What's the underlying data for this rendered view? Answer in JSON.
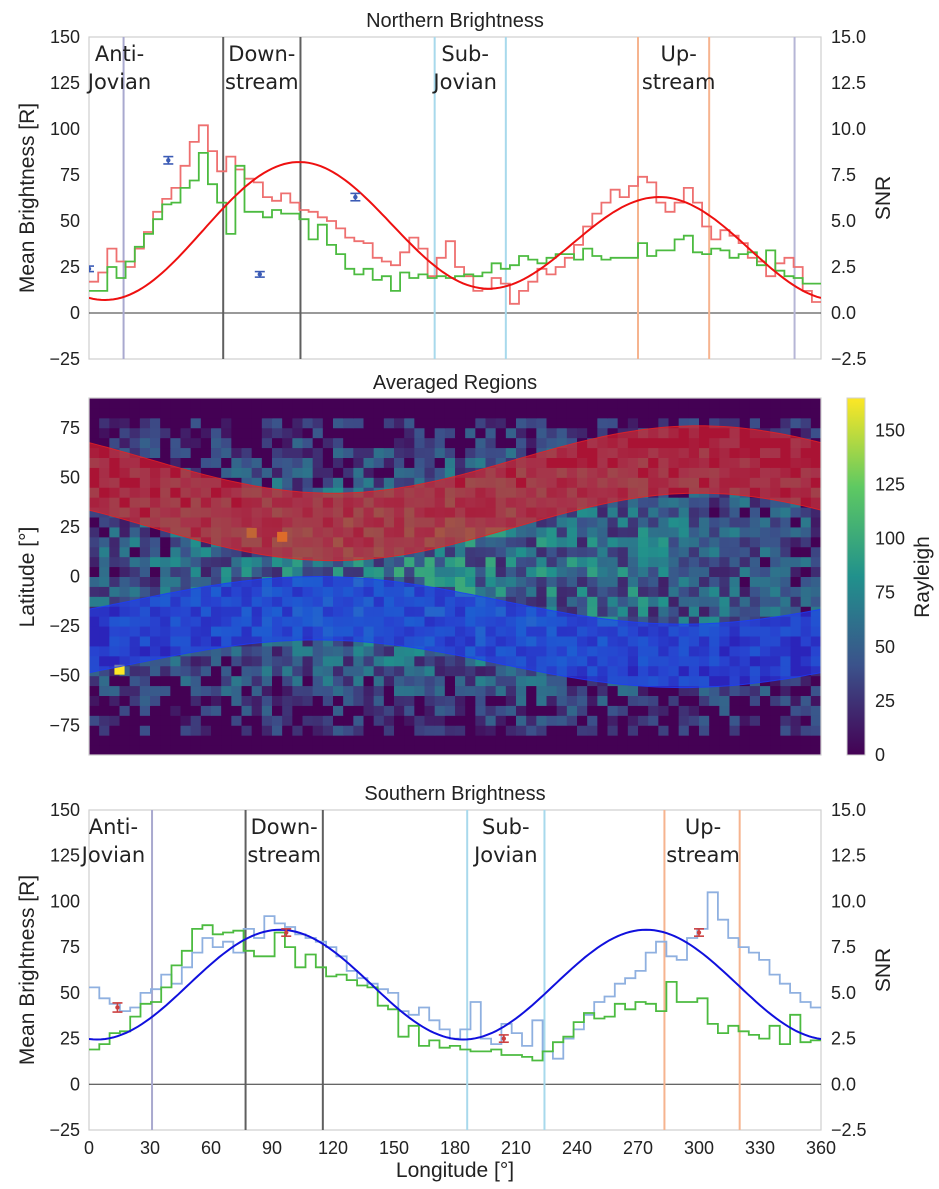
{
  "chart_data": [
    {
      "type": "line",
      "title": "Northern Brightness",
      "ylabel": "Mean Brightness [R]",
      "ylabel_right": "SNR",
      "xlim": [
        0,
        360
      ],
      "ylim": [
        -25,
        150
      ],
      "ylim_right": [
        -2.5,
        15.0
      ],
      "yticks": [
        "150",
        "125",
        "100",
        "75",
        "50",
        "25",
        "0",
        "−25"
      ],
      "yticks_right": [
        "15.0",
        "12.5",
        "10.0",
        "7.5",
        "5.0",
        "2.5",
        "0.0",
        "−2.5"
      ],
      "grid": false,
      "fit": {
        "mean": 41.5,
        "amp1": 10,
        "phase1": 120,
        "amp2": 31,
        "phase2": 102
      },
      "series": [
        {
          "role": "brightness",
          "color": "#ee7070",
          "values": [
            17,
            22,
            35,
            28,
            25,
            35,
            44,
            55,
            62,
            68,
            80,
            93,
            102,
            88,
            77,
            85,
            78,
            73,
            71,
            63,
            61,
            65,
            60,
            56,
            55,
            52,
            50,
            46,
            41,
            39,
            38,
            30,
            28,
            26,
            33,
            41,
            35,
            20,
            30,
            39,
            25,
            20,
            12,
            13,
            19,
            16,
            5,
            12,
            17,
            24,
            21,
            25,
            30,
            37,
            47,
            54,
            60,
            67,
            63,
            69,
            74,
            71,
            60,
            55,
            60,
            68,
            60,
            47,
            40,
            45,
            42,
            38,
            30,
            28,
            20,
            27,
            30,
            25,
            12,
            6
          ]
        },
        {
          "role": "snr",
          "color": "#4cbb40",
          "values": [
            1.2,
            1.2,
            2.5,
            1.9,
            2.8,
            3.6,
            4.3,
            5.1,
            5.9,
            6.0,
            6.8,
            7.2,
            8.7,
            7.0,
            6.0,
            4.3,
            8.0,
            5.5,
            5.5,
            5.2,
            5.6,
            5.4,
            5.4,
            5.1,
            4.0,
            4.8,
            3.7,
            3.2,
            2.4,
            2.1,
            2.4,
            1.8,
            2.0,
            1.2,
            2.2,
            1.9,
            2.1,
            1.9,
            2.0,
            1.9,
            2.0,
            2.1,
            2.0,
            2.2,
            2.7,
            2.4,
            2.6,
            3.1,
            2.9,
            2.7,
            3.0,
            3.2,
            3.2,
            2.9,
            3.5,
            3.1,
            2.9,
            3.0,
            3.0,
            3.0,
            3.8,
            3.1,
            3.4,
            3.4,
            4.0,
            4.2,
            3.3,
            3.2,
            3.5,
            3.4,
            3.0,
            3.2,
            3.3,
            2.6,
            3.4,
            2.3,
            2.0,
            1.9,
            1.6,
            1.6
          ]
        }
      ],
      "error_points": [
        {
          "x": 0,
          "y": 24,
          "err": 1.5
        },
        {
          "x": 39,
          "y": 83,
          "err": 2
        },
        {
          "x": 84,
          "y": 21,
          "err": 1.5
        },
        {
          "x": 131,
          "y": 63,
          "err": 2
        }
      ],
      "regions": [
        {
          "name": "Anti-Jovian",
          "label_lines": [
            "Anti-",
            "Jovian"
          ],
          "lines": [
            17
          ],
          "color": "#a9a9cf",
          "label_x": 15
        },
        {
          "name": "Downstream",
          "label_lines": [
            "Down-",
            "stream"
          ],
          "lines": [
            66,
            104
          ],
          "color": "#5f5f5f",
          "label_x": 85
        },
        {
          "name": "Sub-Jovian",
          "label_lines": [
            "Sub-",
            "Jovian"
          ],
          "lines": [
            170,
            205
          ],
          "color": "#a8d9ec",
          "label_x": 185
        },
        {
          "name": "Upstream",
          "label_lines": [
            "Up-",
            "stream"
          ],
          "lines": [
            270,
            305
          ],
          "color": "#f6b48f",
          "label_x": 290
        },
        {
          "name": "edge",
          "label_lines": [],
          "lines": [
            347
          ],
          "color": "#b6b6d6",
          "label_x": 0
        }
      ]
    },
    {
      "type": "heatmap",
      "title": "Averaged Regions",
      "ylabel": "Latitude [°]",
      "colorbar_label": "Rayleigh",
      "colormap": "viridis",
      "xlim": [
        0,
        360
      ],
      "ylim": [
        -90,
        90
      ],
      "clim": [
        0,
        165
      ],
      "yticks": [
        "75",
        "50",
        "25",
        "0",
        "−25",
        "−50",
        "−75"
      ],
      "colorbar_ticks": [
        "150",
        "125",
        "100",
        "75",
        "50",
        "25",
        "0"
      ],
      "bands": [
        {
          "hemisphere": "north",
          "color": "#ee2020",
          "center": 35,
          "half_width": 17
        },
        {
          "hemisphere": "south",
          "color": "#1a3cff",
          "center": -28,
          "half_width": 16
        }
      ],
      "hot_spots": [
        {
          "lon": 15,
          "lat": -47,
          "value": 165
        },
        {
          "lon": 95,
          "lat": 20,
          "value": 150
        },
        {
          "lon": 80,
          "lat": 22,
          "value": 132
        }
      ]
    },
    {
      "type": "line",
      "title": "Southern Brightness",
      "xlabel": "Longitude [°]",
      "ylabel": "Mean Brightness [R]",
      "ylabel_right": "SNR",
      "xlim": [
        0,
        360
      ],
      "ylim": [
        -25,
        150
      ],
      "ylim_right": [
        -2.5,
        15.0
      ],
      "xticks": [
        "0",
        "30",
        "60",
        "90",
        "120",
        "150",
        "180",
        "210",
        "240",
        "270",
        "300",
        "330",
        "360"
      ],
      "yticks": [
        "150",
        "125",
        "100",
        "75",
        "50",
        "25",
        "0",
        "−25"
      ],
      "yticks_right": [
        "15.0",
        "12.5",
        "10.0",
        "7.5",
        "5.0",
        "2.5",
        "0.0",
        "−2.5"
      ],
      "grid": false,
      "fit": {
        "mean": 54.5,
        "amp1": 0,
        "phase1": 0,
        "amp2": 30,
        "phase2": 94
      },
      "series": [
        {
          "role": "brightness",
          "color": "#8fb0e0",
          "values": [
            53,
            47,
            44,
            40,
            42,
            50,
            52,
            60,
            55,
            64,
            72,
            80,
            75,
            78,
            72,
            85,
            80,
            92,
            88,
            86,
            82,
            80,
            78,
            75,
            70,
            62,
            58,
            55,
            52,
            50,
            40,
            38,
            42,
            35,
            30,
            25,
            30,
            45,
            25,
            22,
            33,
            28,
            21,
            35,
            18,
            14,
            25,
            30,
            38,
            45,
            48,
            55,
            58,
            62,
            72,
            78,
            70,
            68,
            80,
            85,
            105,
            90,
            80,
            75,
            72,
            68,
            60,
            55,
            50,
            45,
            42
          ]
        },
        {
          "role": "snr",
          "color": "#4cbb40",
          "values": [
            1.9,
            2.2,
            2.8,
            2.9,
            3.7,
            4.4,
            4.5,
            5.3,
            6.5,
            7.3,
            8.5,
            8.7,
            8.2,
            8.3,
            8.4,
            7.3,
            7.0,
            7.0,
            8.3,
            7.5,
            6.4,
            7.1,
            6.4,
            5.9,
            6.0,
            5.7,
            5.4,
            5.3,
            4.3,
            4.1,
            2.6,
            3.2,
            2.1,
            2.4,
            2.0,
            2.1,
            1.9,
            1.8,
            1.8,
            1.9,
            1.6,
            1.6,
            1.5,
            1.3,
            1.8,
            2.3,
            2.6,
            3.4,
            3.9,
            3.6,
            3.7,
            4.4,
            4.1,
            4.5,
            4.4,
            4.0,
            5.6,
            4.5,
            4.5,
            4.7,
            3.3,
            2.8,
            3.2,
            2.9,
            2.7,
            2.5,
            3.2,
            2.2,
            3.8,
            2.3,
            2.4
          ]
        }
      ],
      "error_points": [
        {
          "x": 14,
          "y": 42,
          "err": 2.5
        },
        {
          "x": 97,
          "y": 83,
          "err": 2
        },
        {
          "x": 204,
          "y": 25,
          "err": 2
        },
        {
          "x": 300,
          "y": 83,
          "err": 2
        }
      ],
      "regions": [
        {
          "name": "Anti-Jovian",
          "label_lines": [
            "Anti-",
            "Jovian"
          ],
          "lines": [
            31
          ],
          "color": "#a9a9cf",
          "label_x": 12
        },
        {
          "name": "Downstream",
          "label_lines": [
            "Down-",
            "stream"
          ],
          "lines": [
            77,
            115
          ],
          "color": "#5f5f5f",
          "label_x": 96
        },
        {
          "name": "Sub-Jovian",
          "label_lines": [
            "Sub-",
            "Jovian"
          ],
          "lines": [
            186,
            224
          ],
          "color": "#a8d9ec",
          "label_x": 205
        },
        {
          "name": "Upstream",
          "label_lines": [
            "Up-",
            "stream"
          ],
          "lines": [
            283,
            320
          ],
          "color": "#f6b48f",
          "label_x": 302
        }
      ]
    }
  ]
}
